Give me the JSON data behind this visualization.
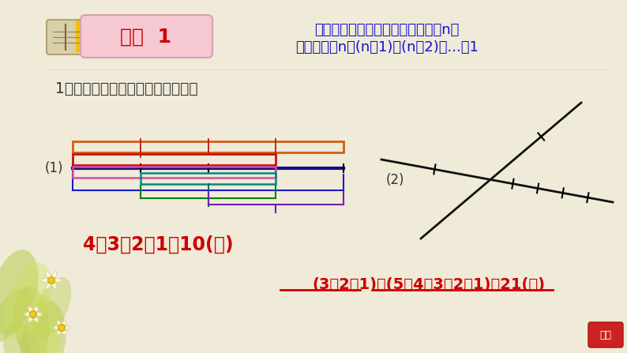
{
  "bg_color": "#f0ead8",
  "title_box_color": "#f0ccd8",
  "title_text": "类型  1",
  "title_color": "#cc0000",
  "formula_line1": "数线段，先数基本线段，若条数是n，",
  "formula_line2": "则总条数是n＋(n－1)＋(n－2)＋...＋1",
  "formula_color": "#1010cc",
  "question": "1．下面各图中分别有多少条线段？",
  "question_color": "#333333",
  "label1": "(1)",
  "label2": "(2)",
  "answer1": "4＋3＋2＋1＝10(条)",
  "answer1_color": "#cc0000",
  "answer2": "(3＋2＋1)＋(5＋4＋3＋2＋1)＝21(条)",
  "answer2_color": "#cc0000",
  "line_dark_blue": "#101080",
  "rect_orange": "#d06010",
  "rect_red": "#cc1010",
  "rect_pink": "#d050a0",
  "rect_teal": "#008888",
  "bracket_blue": "#1a1acc",
  "bracket_green": "#008000",
  "bracket_purple": "#7020b0",
  "cross_line_color": "#111111",
  "btn_color": "#cc2222",
  "leaf_green": "#b8cc50",
  "flower_white": "#fffff0",
  "flower_center": "#f0c820"
}
